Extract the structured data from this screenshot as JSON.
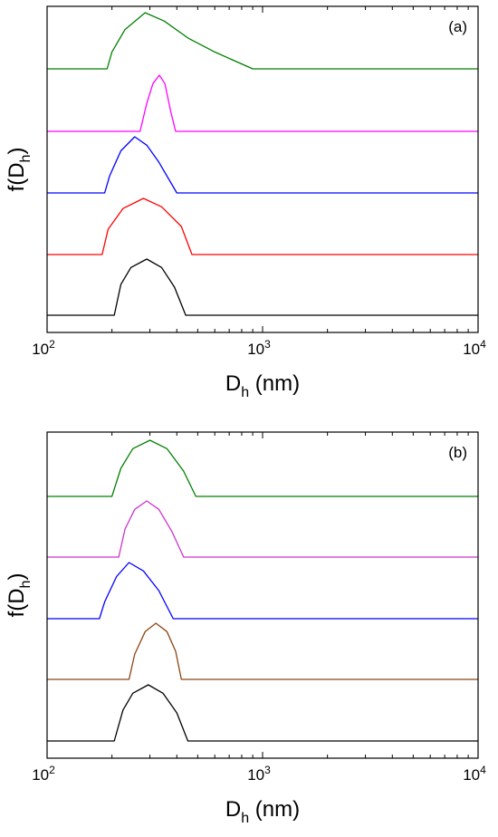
{
  "chart_data": [
    {
      "type": "line",
      "panel_label": "(a)",
      "xlabel": {
        "main": "D",
        "sub": "h",
        "rest": " (nm)"
      },
      "ylabel": {
        "main": "f(D",
        "sub": "h",
        "rest": ")"
      },
      "x_scale": "log",
      "xlim": [
        100,
        10000
      ],
      "x_ticks": [
        {
          "value": 100,
          "base": "10",
          "exp": "2"
        },
        {
          "value": 1000,
          "base": "10",
          "exp": "3"
        },
        {
          "value": 10000,
          "base": "10",
          "exp": "4"
        }
      ],
      "y_ticks_visible": false,
      "grid": false,
      "series": [
        {
          "color": "#000000",
          "values": [
            [
              100,
              0
            ],
            [
              205,
              0
            ],
            [
              220,
              0.55
            ],
            [
              245,
              0.85
            ],
            [
              290,
              1.0
            ],
            [
              340,
              0.85
            ],
            [
              390,
              0.5
            ],
            [
              440,
              0
            ],
            [
              10000,
              0
            ]
          ]
        },
        {
          "color": "#ff0000",
          "values": [
            [
              100,
              0
            ],
            [
              180,
              0
            ],
            [
              192,
              0.45
            ],
            [
              225,
              0.82
            ],
            [
              280,
              1.0
            ],
            [
              340,
              0.85
            ],
            [
              420,
              0.5
            ],
            [
              470,
              0
            ],
            [
              10000,
              0
            ]
          ]
        },
        {
          "color": "#0000ff",
          "values": [
            [
              100,
              0
            ],
            [
              185,
              0
            ],
            [
              195,
              0.3
            ],
            [
              220,
              0.75
            ],
            [
              255,
              1.0
            ],
            [
              290,
              0.85
            ],
            [
              330,
              0.55
            ],
            [
              400,
              0
            ],
            [
              10000,
              0
            ]
          ]
        },
        {
          "color": "#ff00ff",
          "values": [
            [
              100,
              0
            ],
            [
              270,
              0
            ],
            [
              290,
              0.5
            ],
            [
              310,
              0.85
            ],
            [
              332,
              1.0
            ],
            [
              352,
              0.85
            ],
            [
              375,
              0.35
            ],
            [
              395,
              0
            ],
            [
              10000,
              0
            ]
          ]
        },
        {
          "color": "#008000",
          "values": [
            [
              100,
              0
            ],
            [
              190,
              0
            ],
            [
              200,
              0.3
            ],
            [
              230,
              0.7
            ],
            [
              285,
              1.0
            ],
            [
              350,
              0.85
            ],
            [
              450,
              0.55
            ],
            [
              600,
              0.3
            ],
            [
              900,
              0
            ],
            [
              10000,
              0
            ]
          ]
        }
      ]
    },
    {
      "type": "line",
      "panel_label": "(b)",
      "xlabel": {
        "main": "D",
        "sub": "h",
        "rest": " (nm)"
      },
      "ylabel": {
        "main": "f(D",
        "sub": "h",
        "rest": ")"
      },
      "x_scale": "log",
      "xlim": [
        100,
        10000
      ],
      "x_ticks": [
        {
          "value": 100,
          "base": "10",
          "exp": "2"
        },
        {
          "value": 1000,
          "base": "10",
          "exp": "3"
        },
        {
          "value": 10000,
          "base": "10",
          "exp": "4"
        }
      ],
      "y_ticks_visible": false,
      "grid": false,
      "series": [
        {
          "color": "#000000",
          "values": [
            [
              100,
              0
            ],
            [
              205,
              0
            ],
            [
              225,
              0.55
            ],
            [
              250,
              0.85
            ],
            [
              295,
              1.0
            ],
            [
              345,
              0.85
            ],
            [
              400,
              0.5
            ],
            [
              450,
              0
            ],
            [
              10000,
              0
            ]
          ]
        },
        {
          "color": "#8b4513",
          "values": [
            [
              100,
              0
            ],
            [
              240,
              0
            ],
            [
              255,
              0.45
            ],
            [
              285,
              0.85
            ],
            [
              320,
              1.0
            ],
            [
              360,
              0.85
            ],
            [
              395,
              0.5
            ],
            [
              420,
              0
            ],
            [
              10000,
              0
            ]
          ]
        },
        {
          "color": "#0000ff",
          "values": [
            [
              100,
              0
            ],
            [
              175,
              0
            ],
            [
              185,
              0.3
            ],
            [
              210,
              0.75
            ],
            [
              240,
              1.0
            ],
            [
              280,
              0.85
            ],
            [
              330,
              0.5
            ],
            [
              385,
              0
            ],
            [
              10000,
              0
            ]
          ]
        },
        {
          "color": "#cc33cc",
          "values": [
            [
              100,
              0
            ],
            [
              215,
              0
            ],
            [
              230,
              0.5
            ],
            [
              255,
              0.85
            ],
            [
              290,
              1.0
            ],
            [
              330,
              0.85
            ],
            [
              380,
              0.45
            ],
            [
              430,
              0
            ],
            [
              10000,
              0
            ]
          ]
        },
        {
          "color": "#008000",
          "values": [
            [
              100,
              0
            ],
            [
              200,
              0
            ],
            [
              220,
              0.5
            ],
            [
              250,
              0.85
            ],
            [
              300,
              1.0
            ],
            [
              360,
              0.85
            ],
            [
              430,
              0.45
            ],
            [
              490,
              0
            ],
            [
              10000,
              0
            ]
          ]
        }
      ]
    }
  ]
}
